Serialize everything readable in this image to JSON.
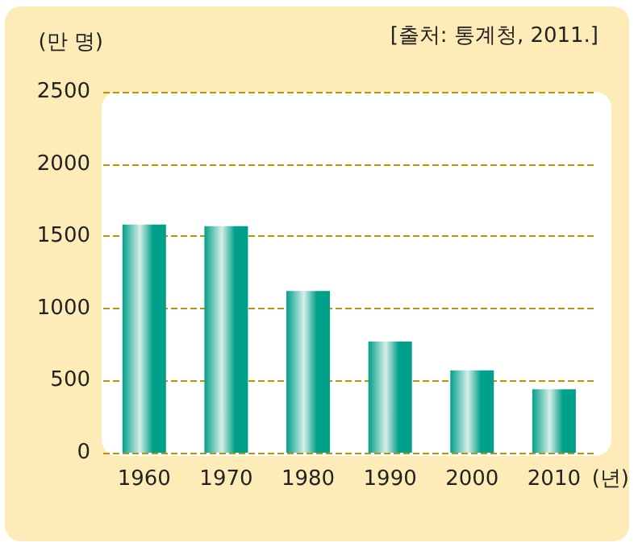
{
  "chart_data": {
    "type": "bar",
    "ylabel": "(만 명)",
    "xlabel": "(년)",
    "annotations": [
      "[출처: 통계청, 2011.]"
    ],
    "categories": [
      "1960",
      "1970",
      "1980",
      "1990",
      "2000",
      "2010"
    ],
    "values": [
      1580,
      1570,
      1120,
      770,
      570,
      440
    ],
    "color": "#00a08a",
    "ylim": [
      0,
      2500
    ],
    "yticks": [
      0,
      500,
      1000,
      1500,
      2000,
      2500
    ],
    "grid": "y"
  }
}
